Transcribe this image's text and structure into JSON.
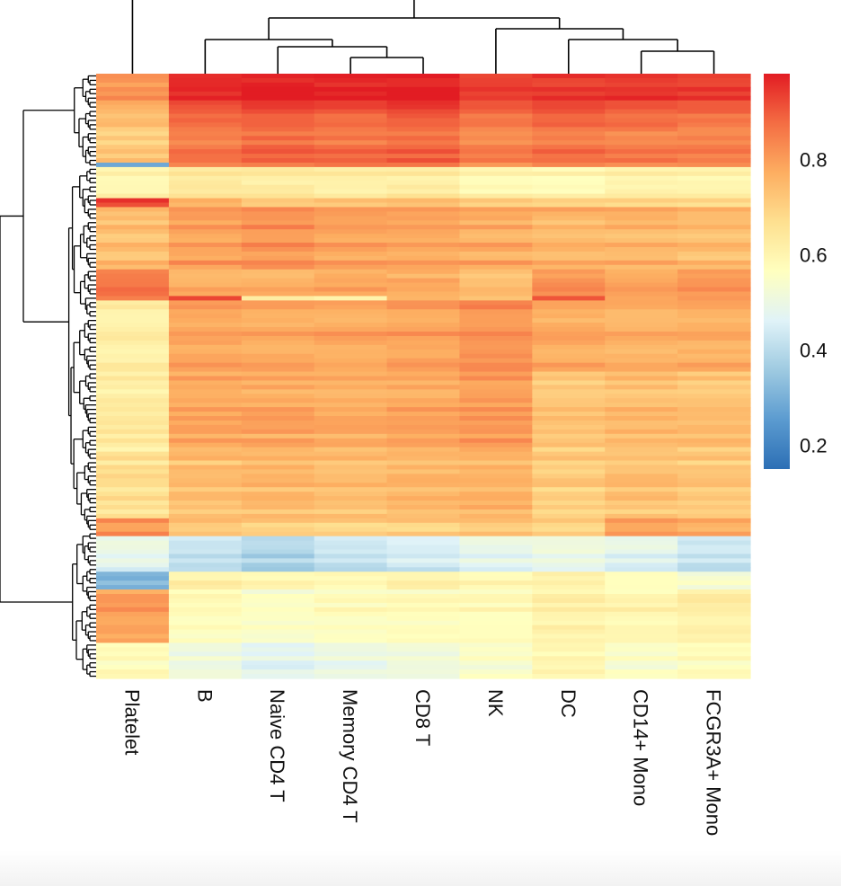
{
  "chart_data": {
    "type": "heatmap",
    "title": "",
    "columns": [
      "Platelet",
      "B",
      "Naive CD4 T",
      "Memory CD4 T",
      "CD8 T",
      "NK",
      "DC",
      "CD14+ Mono",
      "FCGR3A+ Mono"
    ],
    "column_dendrogram": "present (top)",
    "row_dendrogram": "present (left)",
    "colorbar": {
      "ticks": [
        0.8,
        0.6,
        0.4,
        0.2
      ],
      "range": [
        0.15,
        0.98
      ],
      "colors": [
        "#2c6fb5",
        "#5b9bd0",
        "#9ecae1",
        "#e0f3f8",
        "#ffffbf",
        "#fee090",
        "#fdae61",
        "#f46d43",
        "#e21c23"
      ]
    },
    "row_blocks": [
      {
        "rows": 6,
        "values": [
          0.82,
          0.97,
          0.98,
          0.98,
          0.98,
          0.94,
          0.95,
          0.95,
          0.94
        ]
      },
      {
        "rows": 6,
        "values": [
          0.76,
          0.9,
          0.92,
          0.91,
          0.92,
          0.88,
          0.9,
          0.89,
          0.88
        ]
      },
      {
        "rows": 8,
        "values": [
          0.72,
          0.86,
          0.88,
          0.87,
          0.88,
          0.84,
          0.86,
          0.85,
          0.84
        ]
      },
      {
        "rows": 1,
        "values": [
          0.3,
          0.86,
          0.88,
          0.87,
          0.88,
          0.84,
          0.86,
          0.85,
          0.84
        ]
      },
      {
        "rows": 7,
        "values": [
          0.6,
          0.65,
          0.64,
          0.63,
          0.64,
          0.6,
          0.6,
          0.62,
          0.62
        ]
      },
      {
        "rows": 2,
        "values": [
          0.95,
          0.78,
          0.72,
          0.73,
          0.74,
          0.72,
          0.7,
          0.7,
          0.7
        ]
      },
      {
        "rows": 14,
        "values": [
          0.74,
          0.8,
          0.82,
          0.8,
          0.79,
          0.78,
          0.76,
          0.76,
          0.75
        ]
      },
      {
        "rows": 6,
        "values": [
          0.86,
          0.76,
          0.76,
          0.78,
          0.77,
          0.74,
          0.82,
          0.78,
          0.8
        ]
      },
      {
        "rows": 1,
        "values": [
          0.86,
          0.94,
          0.62,
          0.6,
          0.78,
          0.74,
          0.92,
          0.78,
          0.8
        ]
      },
      {
        "rows": 16,
        "values": [
          0.62,
          0.79,
          0.78,
          0.78,
          0.79,
          0.82,
          0.78,
          0.76,
          0.77
        ]
      },
      {
        "rows": 18,
        "values": [
          0.63,
          0.78,
          0.78,
          0.77,
          0.78,
          0.8,
          0.72,
          0.74,
          0.73
        ]
      },
      {
        "rows": 15,
        "values": [
          0.66,
          0.73,
          0.74,
          0.73,
          0.74,
          0.75,
          0.7,
          0.72,
          0.71
        ]
      },
      {
        "rows": 4,
        "values": [
          0.82,
          0.72,
          0.71,
          0.7,
          0.71,
          0.72,
          0.7,
          0.8,
          0.78
        ]
      },
      {
        "rows": 8,
        "values": [
          0.48,
          0.42,
          0.38,
          0.42,
          0.44,
          0.48,
          0.5,
          0.47,
          0.42
        ]
      },
      {
        "rows": 4,
        "values": [
          0.3,
          0.6,
          0.58,
          0.58,
          0.6,
          0.58,
          0.6,
          0.55,
          0.52
        ]
      },
      {
        "rows": 12,
        "values": [
          0.8,
          0.58,
          0.56,
          0.57,
          0.58,
          0.58,
          0.62,
          0.6,
          0.62
        ]
      },
      {
        "rows": 8,
        "values": [
          0.58,
          0.52,
          0.48,
          0.5,
          0.52,
          0.55,
          0.6,
          0.55,
          0.58
        ]
      }
    ]
  }
}
